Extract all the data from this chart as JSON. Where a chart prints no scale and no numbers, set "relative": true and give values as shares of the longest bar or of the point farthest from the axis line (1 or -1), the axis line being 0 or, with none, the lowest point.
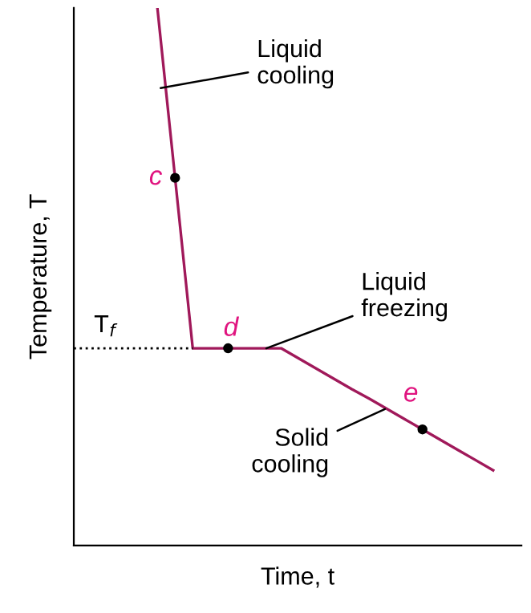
{
  "chart_data": {
    "type": "line",
    "relative": true,
    "xlabel": "Time, t",
    "ylabel": "Temperature, T",
    "categories": [
      null,
      null,
      null,
      null,
      null,
      null,
      null,
      null,
      null,
      null,
      null,
      null,
      null,
      null,
      null,
      null,
      null,
      null,
      null,
      null
    ],
    "series": [
      {
        "color": "#a0195a",
        "values": [
          1,
          0.684,
          0.367,
          0.367,
          0.367,
          0.367,
          0.367,
          0.367,
          0.348,
          0.329,
          0.31,
          0.291,
          0.273,
          0.254,
          0.235,
          0.216,
          0.197,
          0.178,
          0.159,
          0.14
        ],
        "line_style": "solid"
      }
    ],
    "ref_lines": [
      {
        "axis": "y",
        "value": 0.367,
        "label": "T$_{f}$",
        "color": "#000000",
        "line_style": "dotted"
      }
    ],
    "annotations": [
      "Liquid\ncooling",
      "Liquid\nfreezing",
      "Solid\ncooling",
      "c",
      "d",
      "e"
    ]
  }
}
